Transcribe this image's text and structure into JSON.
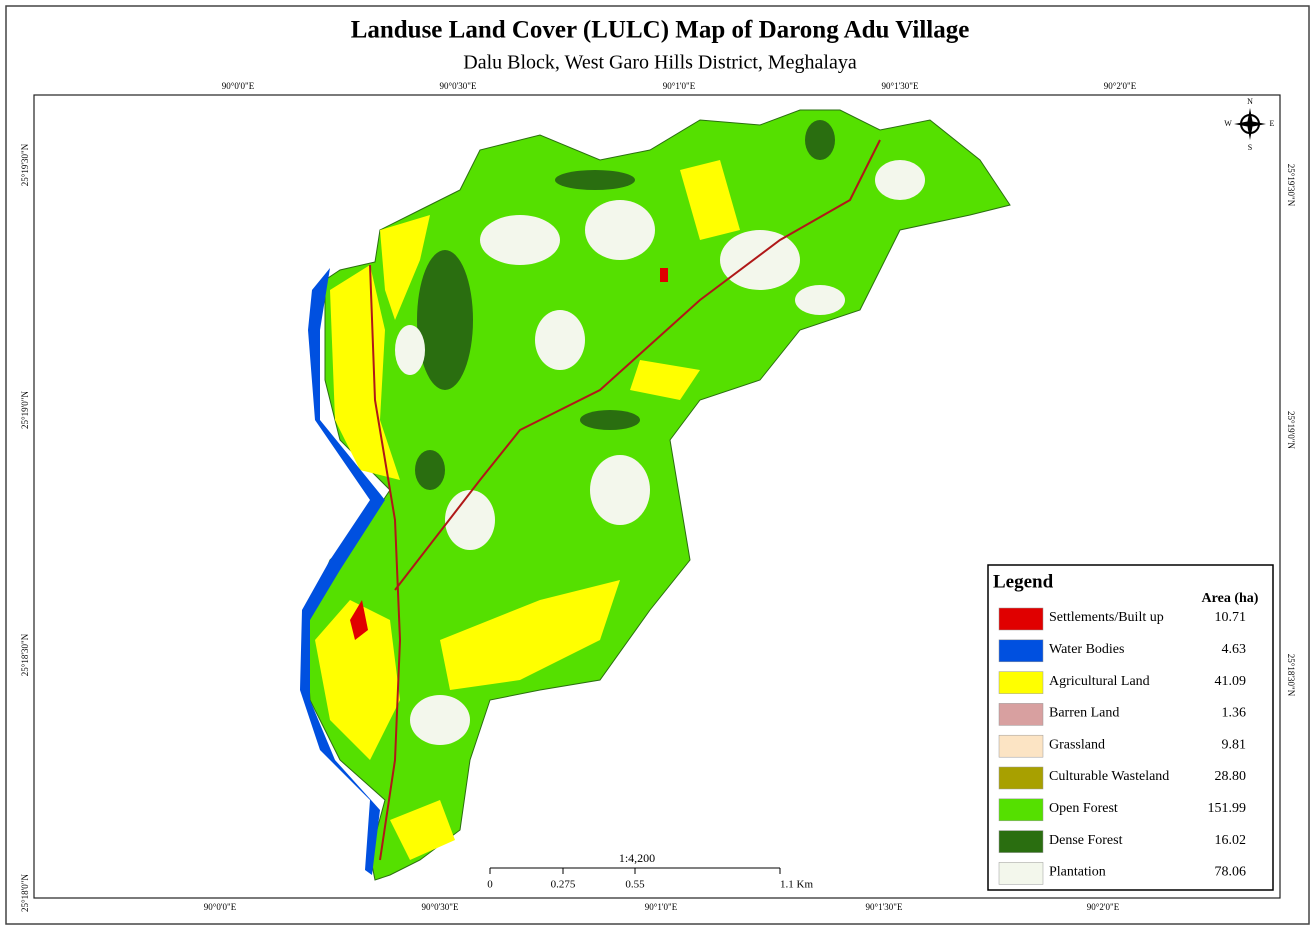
{
  "title": "Landuse Land Cover (LULC) Map of Darong Adu Village",
  "subtitle": "Dalu Block, West Garo Hills District, Meghalaya",
  "graticule": {
    "top": [
      "90°0'0\"E",
      "90°0'30\"E",
      "90°1'0\"E",
      "90°1'30\"E",
      "90°2'0\"E"
    ],
    "bottom": [
      "90°0'0\"E",
      "90°0'30\"E",
      "90°1'0\"E",
      "90°1'30\"E",
      "90°2'0\"E"
    ],
    "left": [
      "25°19'30\"N",
      "25°19'0\"N",
      "25°18'30\"N",
      "25°18'0\"N"
    ],
    "right": [
      "25°19'30\"N",
      "25°19'0\"N",
      "25°18'30\"N"
    ]
  },
  "compass": {
    "n": "N",
    "s": "S",
    "e": "E",
    "w": "W"
  },
  "scale": {
    "ratio": "1:4,200",
    "labels": [
      "0",
      "0.275",
      "0.55",
      "1.1 Km"
    ]
  },
  "legend": {
    "title": "Legend",
    "area_header": "Area (ha)",
    "items": [
      {
        "label": "Settlements/Built up",
        "area": "10.71",
        "color": "#e00000"
      },
      {
        "label": "Water Bodies",
        "area": "4.63",
        "color": "#0050e0"
      },
      {
        "label": "Agricultural Land",
        "area": "41.09",
        "color": "#ffff00"
      },
      {
        "label": "Barren Land",
        "area": "1.36",
        "color": "#d8a0a0"
      },
      {
        "label": "Grassland",
        "area": "9.81",
        "color": "#fce4c4"
      },
      {
        "label": "Culturable Wasteland",
        "area": "28.80",
        "color": "#a8a000"
      },
      {
        "label": "Open Forest",
        "area": "151.99",
        "color": "#55e000"
      },
      {
        "label": "Dense Forest",
        "area": "16.02",
        "color": "#2a6e10"
      },
      {
        "label": "Plantation",
        "area": "78.06",
        "color": "#f3f7ec"
      }
    ]
  }
}
